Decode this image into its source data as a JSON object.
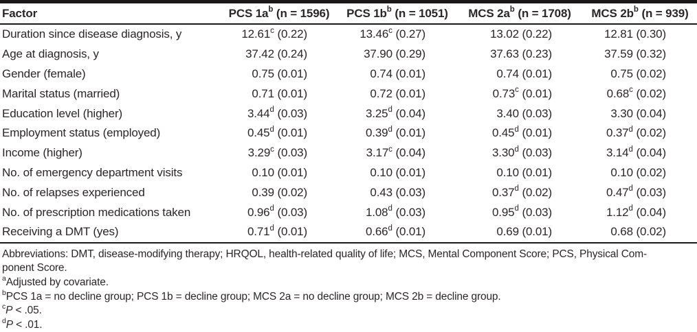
{
  "table": {
    "factor_header": "Factor",
    "columns": [
      {
        "label": "PCS 1a",
        "sup": "b",
        "n": " (n = 1596)"
      },
      {
        "label": "PCS 1b",
        "sup": "b",
        "n": " (n = 1051)"
      },
      {
        "label": "MCS 2a",
        "sup": "b",
        "n": " (n = 1708)"
      },
      {
        "label": "MCS 2b",
        "sup": "b",
        "n": " (n = 939)"
      }
    ],
    "rows": [
      {
        "factor": "Duration since disease diagnosis, y",
        "cells": [
          {
            "v": "12.61",
            "sup": "c",
            "se": " (0.22)"
          },
          {
            "v": "13.46",
            "sup": "c",
            "se": " (0.27)"
          },
          {
            "v": "13.02",
            "sup": "",
            "se": " (0.22)"
          },
          {
            "v": "12.81",
            "sup": "",
            "se": " (0.30)"
          }
        ]
      },
      {
        "factor": "Age at diagnosis, y",
        "cells": [
          {
            "v": "37.42",
            "sup": "",
            "se": " (0.24)"
          },
          {
            "v": "37.90",
            "sup": "",
            "se": " (0.29)"
          },
          {
            "v": "37.63",
            "sup": "",
            "se": " (0.23)"
          },
          {
            "v": "37.59",
            "sup": "",
            "se": " (0.32)"
          }
        ]
      },
      {
        "factor": "Gender (female)",
        "cells": [
          {
            "v": "0.75",
            "sup": "",
            "se": " (0.01)"
          },
          {
            "v": "0.74",
            "sup": "",
            "se": " (0.01)"
          },
          {
            "v": "0.74",
            "sup": "",
            "se": " (0.01)"
          },
          {
            "v": "0.75",
            "sup": "",
            "se": " (0.02)"
          }
        ]
      },
      {
        "factor": "Marital status (married)",
        "cells": [
          {
            "v": "0.71",
            "sup": "",
            "se": " (0.01)"
          },
          {
            "v": "0.72",
            "sup": "",
            "se": " (0.01)"
          },
          {
            "v": "0.73",
            "sup": "c",
            "se": " (0.01)"
          },
          {
            "v": "0.68",
            "sup": "c",
            "se": " (0.02)"
          }
        ]
      },
      {
        "factor": "Education level (higher)",
        "cells": [
          {
            "v": "3.44",
            "sup": "d",
            "se": " (0.03)"
          },
          {
            "v": "3.25",
            "sup": "d",
            "se": " (0.04)"
          },
          {
            "v": "3.40",
            "sup": "",
            "se": " (0.03)"
          },
          {
            "v": "3.30",
            "sup": "",
            "se": " (0.04)"
          }
        ]
      },
      {
        "factor": "Employment status (employed)",
        "cells": [
          {
            "v": "0.45",
            "sup": "d",
            "se": " (0.01)"
          },
          {
            "v": "0.39",
            "sup": "d",
            "se": " (0.01)"
          },
          {
            "v": "0.45",
            "sup": "d",
            "se": " (0.01)"
          },
          {
            "v": "0.37",
            "sup": "d",
            "se": " (0.02)"
          }
        ]
      },
      {
        "factor": "Income (higher)",
        "cells": [
          {
            "v": "3.29",
            "sup": "c",
            "se": " (0.03)"
          },
          {
            "v": "3.17",
            "sup": "c",
            "se": " (0.04)"
          },
          {
            "v": "3.30",
            "sup": "d",
            "se": " (0.03)"
          },
          {
            "v": "3.14",
            "sup": "d",
            "se": " (0.04)"
          }
        ]
      },
      {
        "factor": "No. of emergency department visits",
        "cells": [
          {
            "v": "0.10",
            "sup": "",
            "se": " (0.01)"
          },
          {
            "v": "0.10",
            "sup": "",
            "se": " (0.01)"
          },
          {
            "v": "0.10",
            "sup": "",
            "se": " (0.01)"
          },
          {
            "v": "0.10",
            "sup": "",
            "se": " (0.02)"
          }
        ]
      },
      {
        "factor": "No. of relapses experienced",
        "cells": [
          {
            "v": "0.39",
            "sup": "",
            "se": " (0.02)"
          },
          {
            "v": "0.43",
            "sup": "",
            "se": " (0.03)"
          },
          {
            "v": "0.37",
            "sup": "d",
            "se": " (0.02)"
          },
          {
            "v": "0.47",
            "sup": "d",
            "se": " (0.03)"
          }
        ]
      },
      {
        "factor": "No. of prescription medications taken",
        "cells": [
          {
            "v": "0.96",
            "sup": "d",
            "se": " (0.03)"
          },
          {
            "v": "1.08",
            "sup": "d",
            "se": " (0.03)"
          },
          {
            "v": "0.95",
            "sup": "d",
            "se": " (0.03)"
          },
          {
            "v": "1.12",
            "sup": "d",
            "se": " (0.04)"
          }
        ]
      },
      {
        "factor": "Receiving a DMT (yes)",
        "cells": [
          {
            "v": "0.71",
            "sup": "d",
            "se": " (0.01)"
          },
          {
            "v": "0.66",
            "sup": "d",
            "se": " (0.01)"
          },
          {
            "v": "0.69",
            "sup": "",
            "se": " (0.01)"
          },
          {
            "v": "0.68",
            "sup": "",
            "se": " (0.02)"
          }
        ]
      }
    ]
  },
  "footnotes": {
    "abbrev_line1": "Abbreviations: DMT, disease-modifying therapy; HRQOL, health-related quality of life; MCS, Mental Component Score; PCS, Physical Com-",
    "abbrev_line2": "ponent Score.",
    "a": {
      "sup": "a",
      "text": "Adjusted by covariate."
    },
    "b": {
      "sup": "b",
      "text": "PCS 1a = no decline group; PCS 1b = decline group; MCS 2a = no decline group; MCS 2b = decline group."
    },
    "c": {
      "sup": "c",
      "p": "P",
      "text": " < .05."
    },
    "d": {
      "sup": "d",
      "p": "P",
      "text": " < .01."
    }
  }
}
